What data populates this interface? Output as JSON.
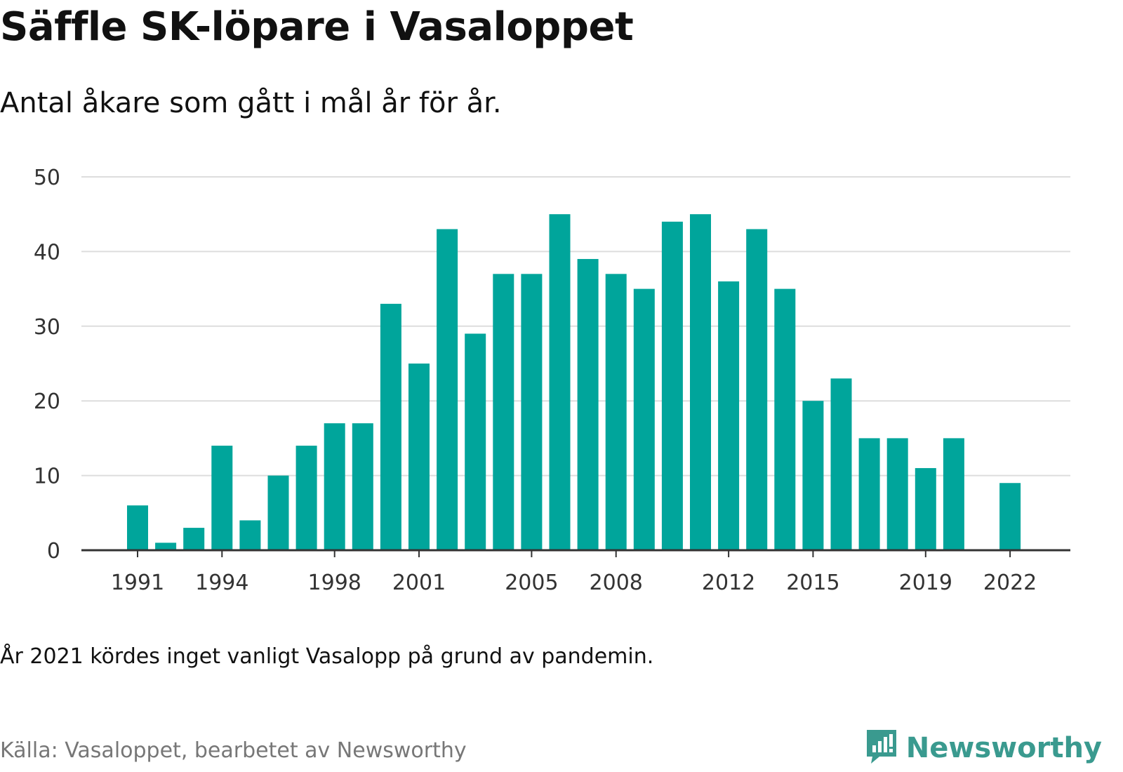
{
  "title": "Säffle SK-löpare i Vasaloppet",
  "subtitle": "Antal åkare som gått i mål år för år.",
  "note": "År 2021 kördes inget vanligt Vasalopp på grund av pandemin.",
  "source": "Källa: Vasaloppet, bearbetet av Newsworthy",
  "brand": {
    "name": "Newsworthy",
    "icon": "newsworthy-logo-icon",
    "color": "#3a9a8f"
  },
  "colors": {
    "bar": "#00a59b",
    "grid": "#dddddd",
    "axis": "#333333"
  },
  "chart_data": {
    "type": "bar",
    "categories": [
      1991,
      1992,
      1993,
      1994,
      1995,
      1996,
      1997,
      1998,
      1999,
      2000,
      2001,
      2002,
      2003,
      2004,
      2005,
      2006,
      2007,
      2008,
      2009,
      2010,
      2011,
      2012,
      2013,
      2014,
      2015,
      2016,
      2017,
      2018,
      2019,
      2020,
      2021,
      2022
    ],
    "values": [
      6,
      1,
      3,
      14,
      4,
      10,
      14,
      17,
      17,
      33,
      25,
      43,
      29,
      37,
      37,
      45,
      39,
      37,
      35,
      44,
      45,
      36,
      43,
      35,
      20,
      23,
      15,
      15,
      11,
      15,
      null,
      9
    ],
    "xticks": [
      1991,
      1994,
      1998,
      2001,
      2005,
      2008,
      2012,
      2015,
      2019,
      2022
    ],
    "yticks": [
      0,
      10,
      20,
      30,
      40,
      50
    ],
    "ylim": [
      0,
      50
    ],
    "xlabel": "",
    "ylabel": "",
    "grid": true
  }
}
